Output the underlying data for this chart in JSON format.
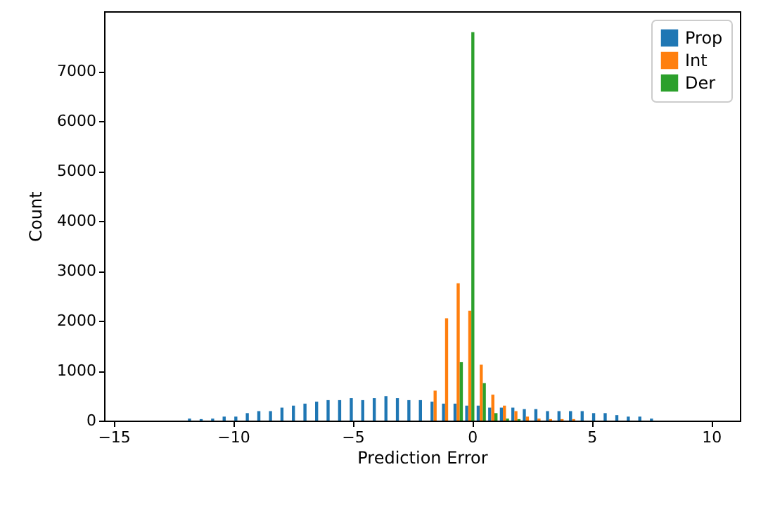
{
  "chart_data": {
    "type": "histogram",
    "xlabel": "Prediction Error",
    "ylabel": "Count",
    "bins": [
      -11.94,
      -11.45,
      -10.97,
      -10.49,
      -10.0,
      -9.52,
      -9.04,
      -8.55,
      -8.07,
      -7.59,
      -7.11,
      -6.62,
      -6.14,
      -5.66,
      -5.17,
      -4.69,
      -4.21,
      -3.72,
      -3.24,
      -2.76,
      -2.28,
      -1.79,
      -1.31,
      -0.83,
      -0.34,
      0.14,
      0.62,
      1.11,
      1.59,
      2.07,
      2.55,
      3.04,
      3.52,
      4.0,
      4.49,
      4.97,
      5.45,
      5.94,
      6.42,
      6.9,
      7.39,
      7.87
    ],
    "series": [
      {
        "name": "Prop",
        "color": "#1f77b4",
        "values": [
          40,
          30,
          40,
          80,
          80,
          150,
          190,
          190,
          260,
          300,
          340,
          380,
          410,
          410,
          450,
          410,
          450,
          490,
          450,
          410,
          410,
          380,
          340,
          340,
          300,
          300,
          260,
          260,
          260,
          230,
          230,
          190,
          190,
          190,
          190,
          150,
          150,
          110,
          80,
          80,
          40
        ]
      },
      {
        "name": "Int",
        "color": "#ff7f0e",
        "values": [
          0,
          0,
          0,
          0,
          0,
          0,
          0,
          0,
          0,
          0,
          0,
          0,
          0,
          0,
          0,
          0,
          0,
          0,
          0,
          0,
          0,
          600,
          2050,
          2750,
          2200,
          1120,
          520,
          300,
          190,
          80,
          40,
          30,
          30,
          30,
          0,
          0,
          0,
          0,
          0,
          0,
          0
        ]
      },
      {
        "name": "Der",
        "color": "#2ca02c",
        "values": [
          0,
          0,
          0,
          0,
          0,
          0,
          0,
          0,
          0,
          0,
          0,
          0,
          0,
          0,
          0,
          0,
          0,
          0,
          0,
          0,
          0,
          0,
          0,
          1170,
          7780,
          750,
          150,
          40,
          30,
          0,
          0,
          0,
          0,
          0,
          0,
          0,
          0,
          0,
          0,
          0,
          0
        ]
      }
    ],
    "xlim": [
      -15.4,
      11.2
    ],
    "ylim": [
      0,
      8200
    ],
    "xticks": [
      -15,
      -10,
      -5,
      0,
      5,
      10
    ],
    "yticks": [
      0,
      1000,
      2000,
      3000,
      4000,
      5000,
      6000,
      7000
    ],
    "grid": false,
    "legend": "top right"
  }
}
